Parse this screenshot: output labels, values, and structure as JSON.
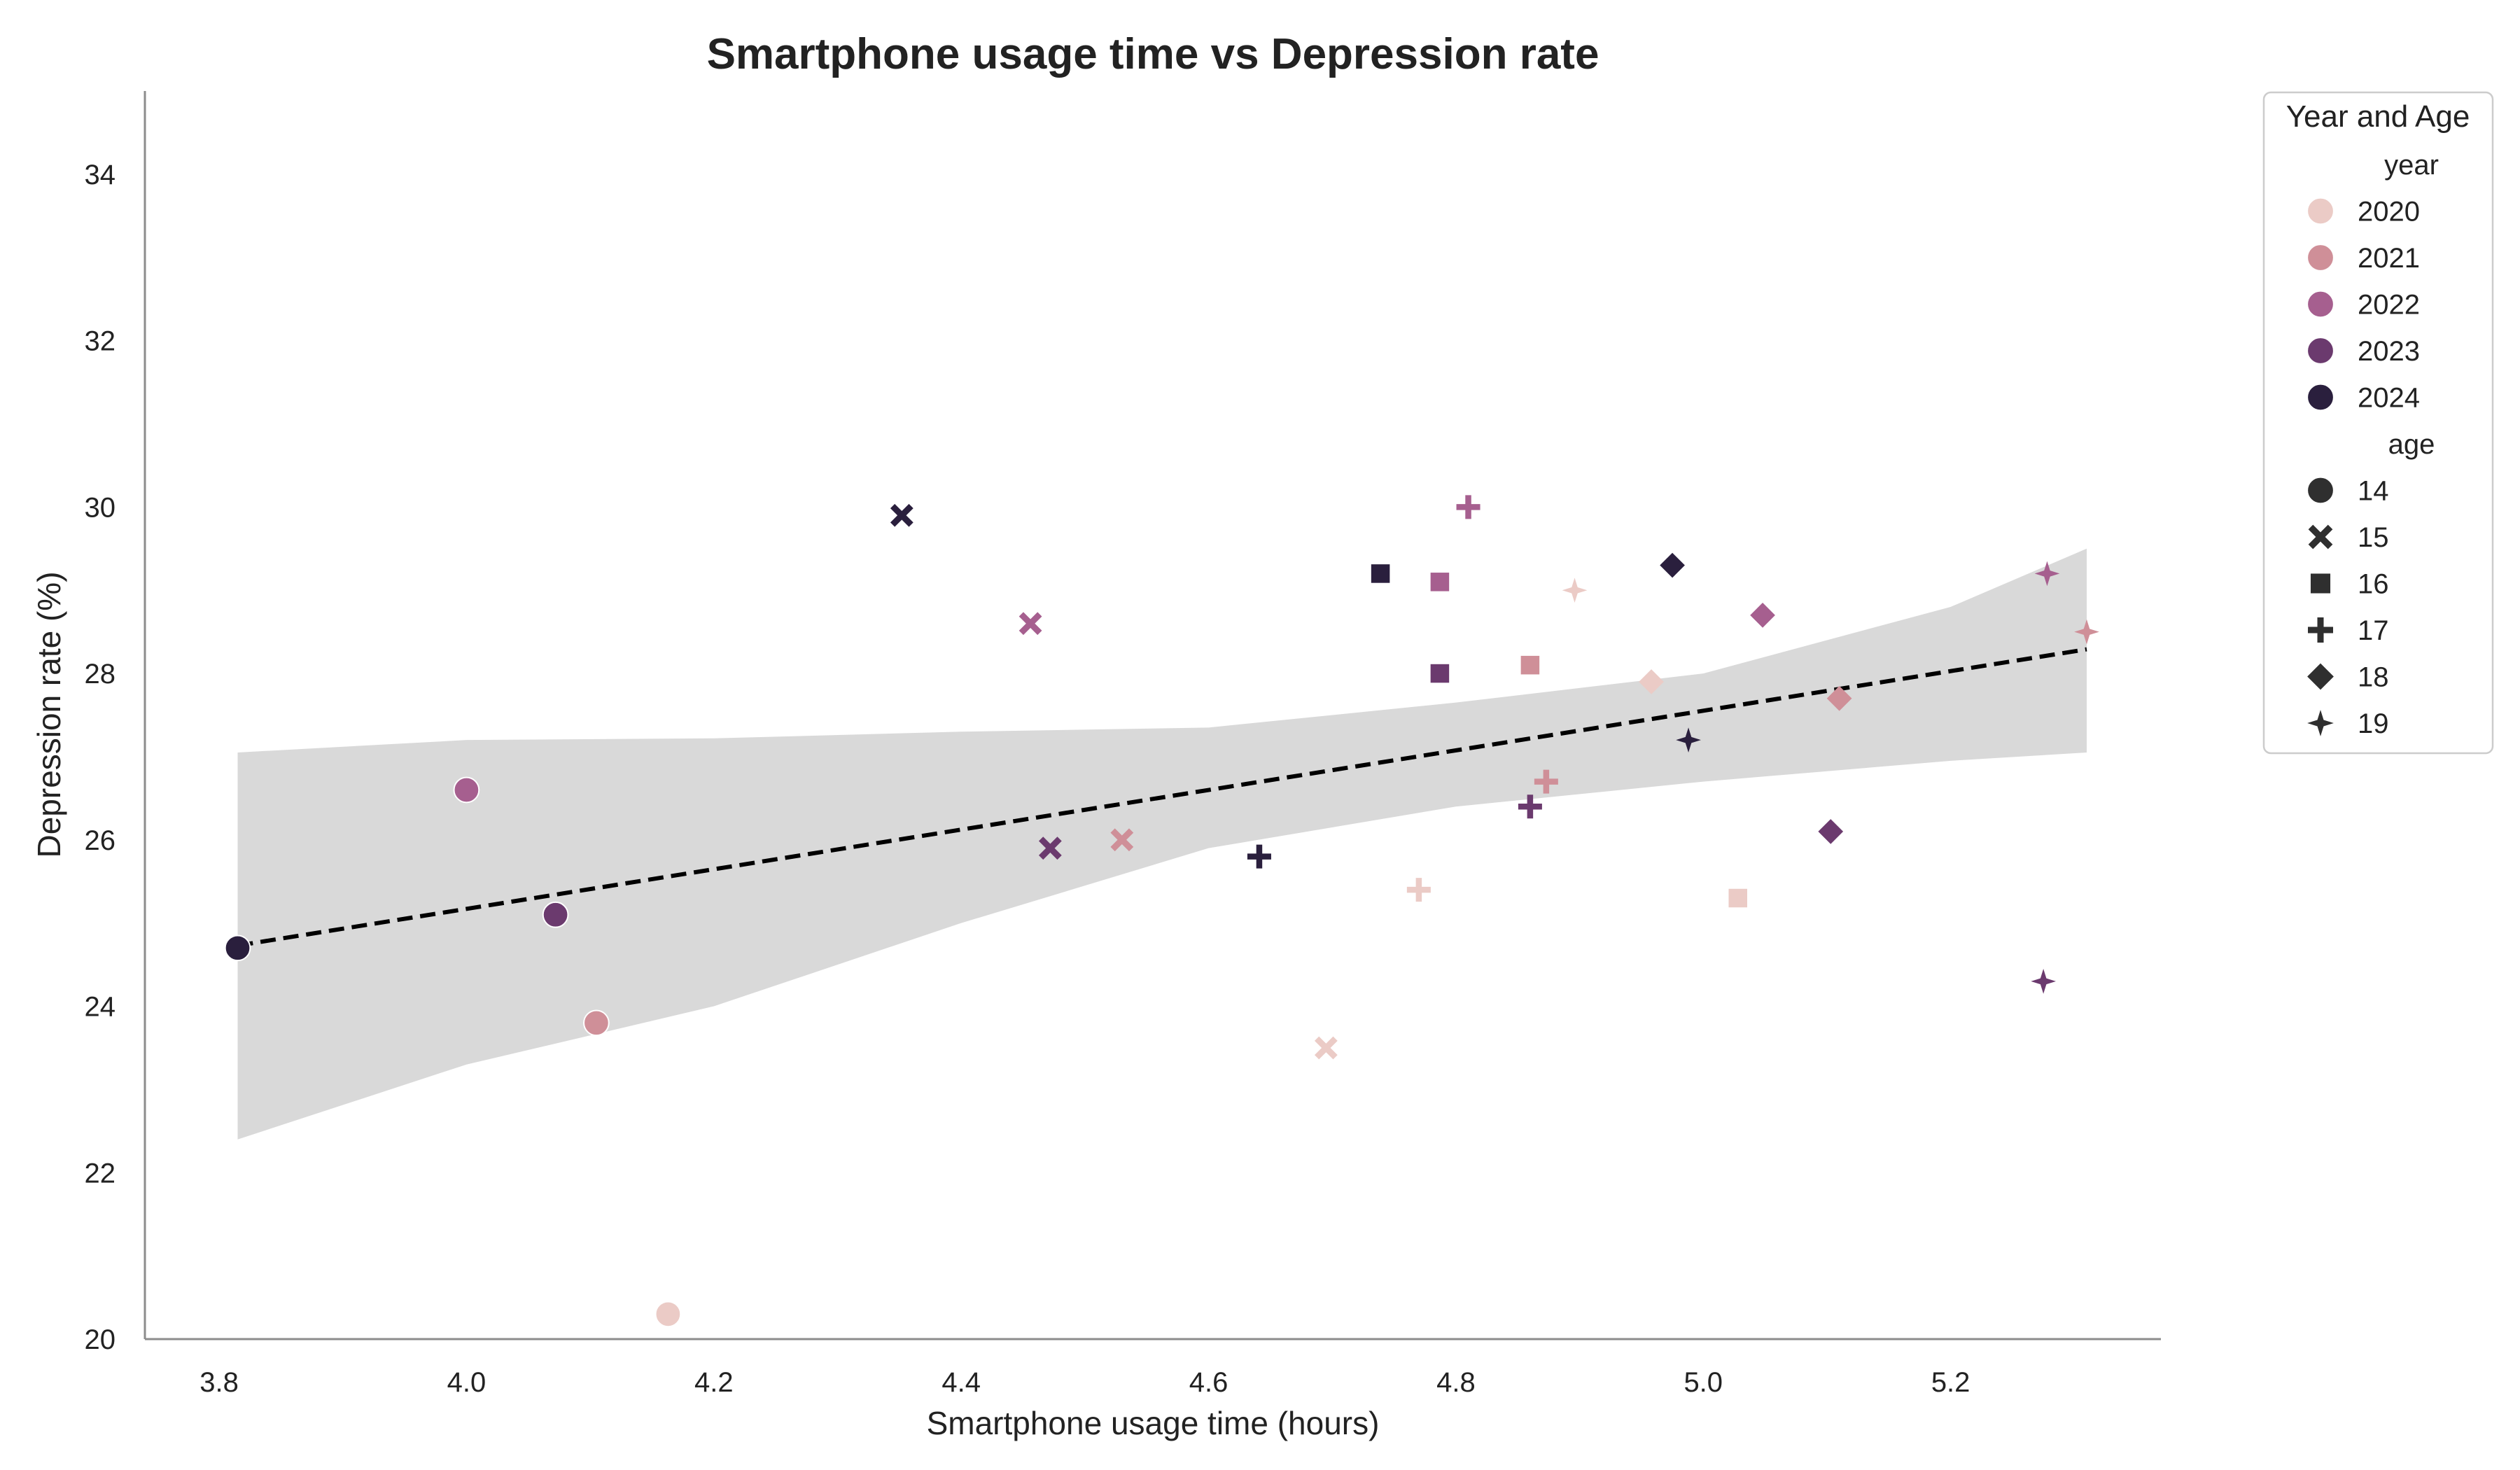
{
  "chart_data": {
    "type": "scatter",
    "title": "Smartphone usage time vs Depression rate",
    "xlabel": "Smartphone usage time (hours)",
    "ylabel": "Depression rate (%)",
    "xlim": [
      3.74,
      5.37
    ],
    "ylim": [
      20,
      35
    ],
    "xticks": [
      "3.8",
      "4.0",
      "4.2",
      "4.4",
      "4.6",
      "4.8",
      "5.0",
      "5.2"
    ],
    "yticks": [
      "20",
      "22",
      "24",
      "26",
      "28",
      "30",
      "32",
      "34"
    ],
    "grid": false,
    "legend": {
      "title": "Year and Age",
      "placement": "outside-right",
      "hue_title": "year",
      "hue_entries": [
        {
          "label": "2020",
          "color": "#ebcbc6"
        },
        {
          "label": "2021",
          "color": "#cf8f98"
        },
        {
          "label": "2022",
          "color": "#a65f8f"
        },
        {
          "label": "2023",
          "color": "#6b3a6e"
        },
        {
          "label": "2024",
          "color": "#2a1f3d"
        }
      ],
      "style_title": "age",
      "style_entries": [
        {
          "label": "14",
          "marker": "circle"
        },
        {
          "label": "15",
          "marker": "x"
        },
        {
          "label": "16",
          "marker": "square"
        },
        {
          "label": "17",
          "marker": "plus"
        },
        {
          "label": "18",
          "marker": "diamond"
        },
        {
          "label": "19",
          "marker": "star4"
        }
      ]
    },
    "points": [
      {
        "x": 4.163,
        "y": 20.3,
        "year": "2020",
        "age": "14"
      },
      {
        "x": 4.105,
        "y": 23.8,
        "year": "2021",
        "age": "14"
      },
      {
        "x": 4.0,
        "y": 26.6,
        "year": "2022",
        "age": "14"
      },
      {
        "x": 4.072,
        "y": 25.1,
        "year": "2023",
        "age": "14"
      },
      {
        "x": 3.815,
        "y": 24.7,
        "year": "2024",
        "age": "14"
      },
      {
        "x": 4.695,
        "y": 23.5,
        "year": "2020",
        "age": "15"
      },
      {
        "x": 4.53,
        "y": 26.0,
        "year": "2021",
        "age": "15"
      },
      {
        "x": 4.456,
        "y": 28.6,
        "year": "2022",
        "age": "15"
      },
      {
        "x": 4.472,
        "y": 25.9,
        "year": "2023",
        "age": "15"
      },
      {
        "x": 4.352,
        "y": 29.9,
        "year": "2024",
        "age": "15"
      },
      {
        "x": 5.028,
        "y": 25.3,
        "year": "2020",
        "age": "16"
      },
      {
        "x": 4.86,
        "y": 28.1,
        "year": "2021",
        "age": "16"
      },
      {
        "x": 4.787,
        "y": 29.1,
        "year": "2022",
        "age": "16"
      },
      {
        "x": 4.787,
        "y": 28.0,
        "year": "2023",
        "age": "16"
      },
      {
        "x": 4.739,
        "y": 29.2,
        "year": "2024",
        "age": "16"
      },
      {
        "x": 4.77,
        "y": 25.4,
        "year": "2020",
        "age": "17"
      },
      {
        "x": 4.873,
        "y": 26.7,
        "year": "2021",
        "age": "17"
      },
      {
        "x": 4.81,
        "y": 30.0,
        "year": "2022",
        "age": "17"
      },
      {
        "x": 4.86,
        "y": 26.4,
        "year": "2023",
        "age": "17"
      },
      {
        "x": 4.641,
        "y": 25.8,
        "year": "2024",
        "age": "17"
      },
      {
        "x": 4.958,
        "y": 27.9,
        "year": "2020",
        "age": "18"
      },
      {
        "x": 5.11,
        "y": 27.7,
        "year": "2021",
        "age": "18"
      },
      {
        "x": 5.048,
        "y": 28.7,
        "year": "2022",
        "age": "18"
      },
      {
        "x": 5.103,
        "y": 26.1,
        "year": "2023",
        "age": "18"
      },
      {
        "x": 4.975,
        "y": 29.3,
        "year": "2024",
        "age": "18"
      },
      {
        "x": 4.896,
        "y": 29.0,
        "year": "2020",
        "age": "19"
      },
      {
        "x": 5.31,
        "y": 28.5,
        "year": "2021",
        "age": "19"
      },
      {
        "x": 5.278,
        "y": 29.2,
        "year": "2022",
        "age": "19"
      },
      {
        "x": 5.275,
        "y": 24.3,
        "year": "2023",
        "age": "19"
      },
      {
        "x": 4.988,
        "y": 27.2,
        "year": "2024",
        "age": "19"
      }
    ],
    "regression": {
      "style": "dashed",
      "color": "#000000",
      "x": [
        3.815,
        5.31
      ],
      "y": [
        24.73,
        28.29
      ]
    },
    "confidence_band": {
      "color": "#d9d9d9",
      "x": [
        3.815,
        4.0,
        4.2,
        4.4,
        4.6,
        4.8,
        5.0,
        5.2,
        5.31
      ],
      "upper": [
        27.05,
        27.2,
        27.22,
        27.3,
        27.35,
        27.65,
        28.0,
        28.8,
        29.5
      ],
      "lower": [
        22.4,
        23.3,
        24.0,
        25.0,
        25.9,
        26.4,
        26.7,
        26.95,
        27.05
      ]
    }
  }
}
